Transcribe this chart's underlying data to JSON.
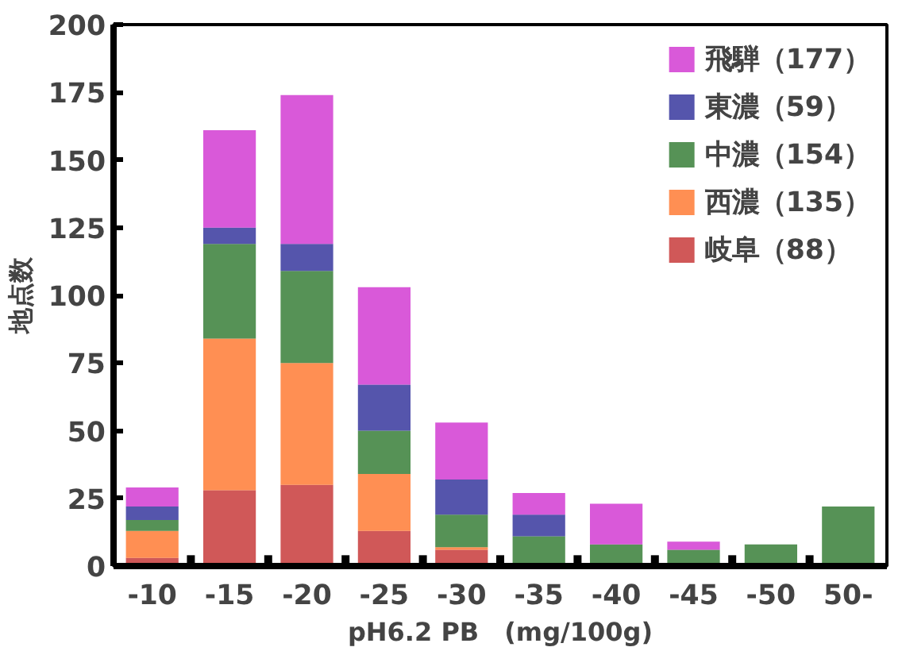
{
  "chart_data": {
    "type": "bar",
    "stacked": true,
    "xlabel": "pH6.2 PB　(mg/100g)",
    "ylabel": "地点数",
    "categories": [
      "-10",
      "-15",
      "-20",
      "-25",
      "-30",
      "-35",
      "-40",
      "-45",
      "-50",
      "50-"
    ],
    "ylim": [
      0,
      200
    ],
    "yticks": [
      0,
      25,
      50,
      75,
      100,
      125,
      150,
      175,
      200
    ],
    "grid": false,
    "legend": "top right",
    "series": [
      {
        "name": "岐阜（88）",
        "color": "#c02020",
        "values": [
          3,
          28,
          30,
          13,
          6,
          null,
          0,
          0,
          0,
          0
        ]
      },
      {
        "name": "西濃（135）",
        "color": "#ff6a1a",
        "values": [
          10,
          56,
          45,
          21,
          1,
          0,
          null,
          0,
          0,
          0
        ]
      },
      {
        "name": "中濃（154）",
        "color": "#1e6e1e",
        "values": [
          4,
          35,
          34,
          16,
          12,
          11,
          8,
          6,
          8,
          22
        ]
      },
      {
        "name": "東濃（59）",
        "color": "#1c1c90",
        "values": [
          5,
          6,
          10,
          17,
          13,
          8,
          0,
          0,
          0,
          0
        ]
      },
      {
        "name": "飛騨（177）",
        "color": "#cc22cc",
        "values": [
          7,
          36,
          55,
          36,
          21,
          8,
          15,
          3,
          0,
          0
        ]
      }
    ]
  }
}
